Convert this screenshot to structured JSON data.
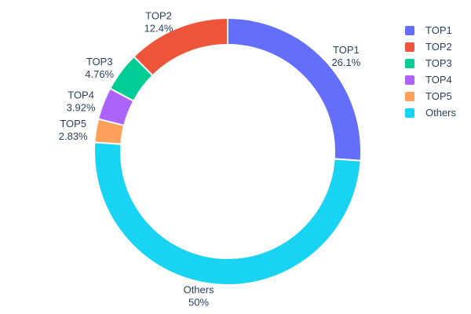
{
  "figure": {
    "background": "#ffffff",
    "text_color": "#2a3f5f"
  },
  "chart_data": {
    "type": "pie",
    "subtype": "donut",
    "hole": 0.8,
    "labels": [
      "TOP1",
      "TOP2",
      "TOP3",
      "TOP4",
      "TOP5",
      "Others"
    ],
    "values": [
      26.1,
      12.4,
      4.76,
      3.92,
      2.83,
      50
    ],
    "percent_labels": [
      "26.1%",
      "12.4%",
      "4.76%",
      "3.92%",
      "2.83%",
      "50%"
    ],
    "colors": [
      "#636EFA",
      "#EF553B",
      "#00CC96",
      "#AB63FA",
      "#FFA15A",
      "#19D3F3"
    ],
    "slice_border_color": "#ffffff",
    "clockwise_order_from_top": [
      "TOP1",
      "Others",
      "TOP5",
      "TOP4",
      "TOP3",
      "TOP2"
    ],
    "labels_position": "outside",
    "legend": {
      "position": "right",
      "entries": [
        "TOP1",
        "TOP2",
        "TOP3",
        "TOP4",
        "TOP5",
        "Others"
      ]
    }
  }
}
